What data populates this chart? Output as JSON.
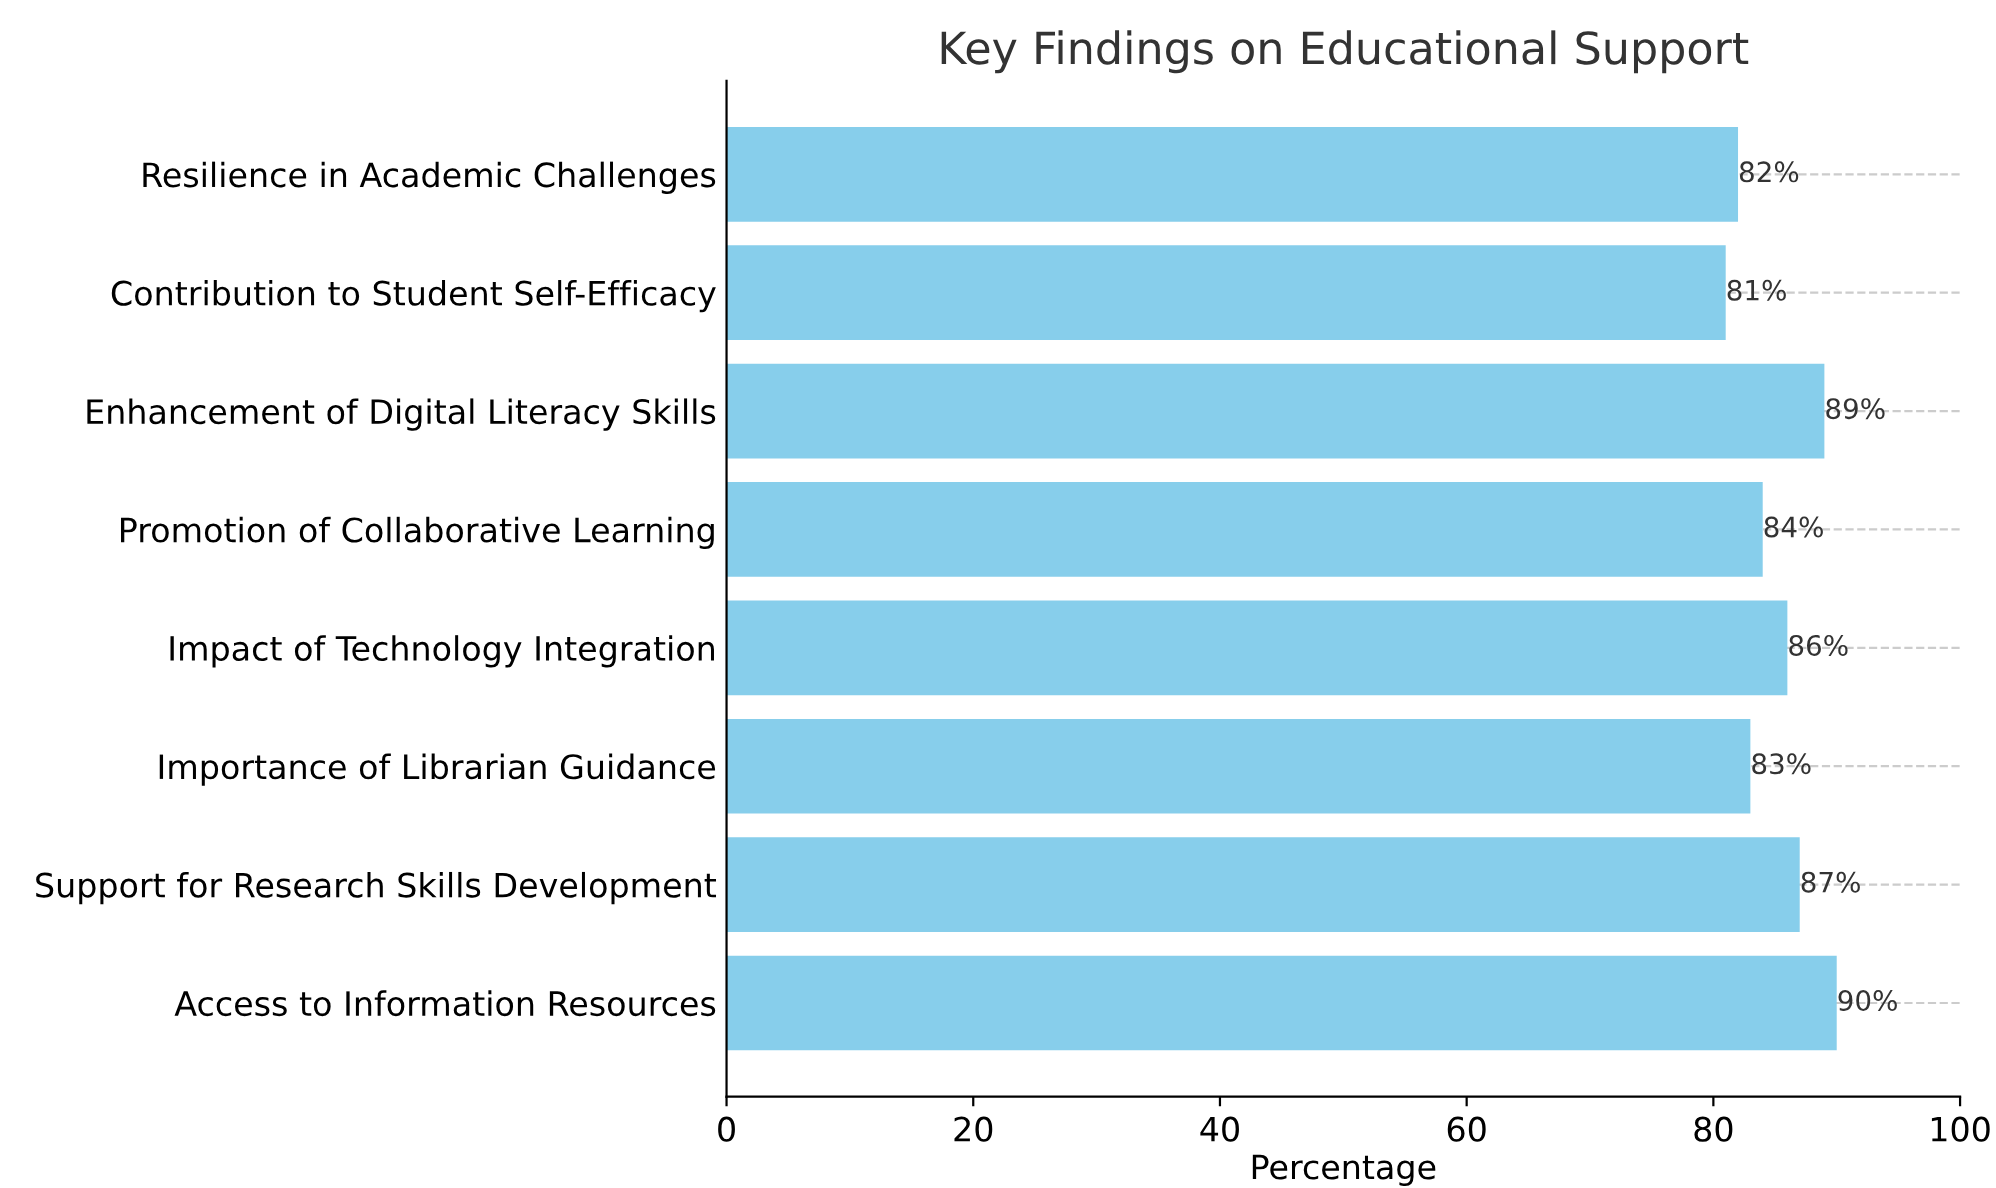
{
  "chart_data": {
    "type": "bar",
    "orientation": "horizontal",
    "title": "Key Findings on Educational Support",
    "xlabel": "Percentage",
    "categories": [
      "Resilience in Academic Challenges",
      "Contribution to Student Self-Efficacy",
      "Enhancement of Digital Literacy Skills",
      "Promotion of Collaborative Learning",
      "Impact of Technology Integration",
      "Importance of Librarian Guidance",
      "Support for Research Skills Development",
      "Access to Information Resources"
    ],
    "values": [
      82,
      81,
      89,
      84,
      86,
      83,
      87,
      90
    ],
    "value_labels": [
      "82%",
      "81%",
      "89%",
      "84%",
      "86%",
      "83%",
      "87%",
      "90%"
    ],
    "color": "#87ceeb",
    "xlim": [
      0,
      100
    ],
    "xticks": [
      0,
      20,
      40,
      60,
      80,
      100
    ],
    "grid": "y"
  }
}
